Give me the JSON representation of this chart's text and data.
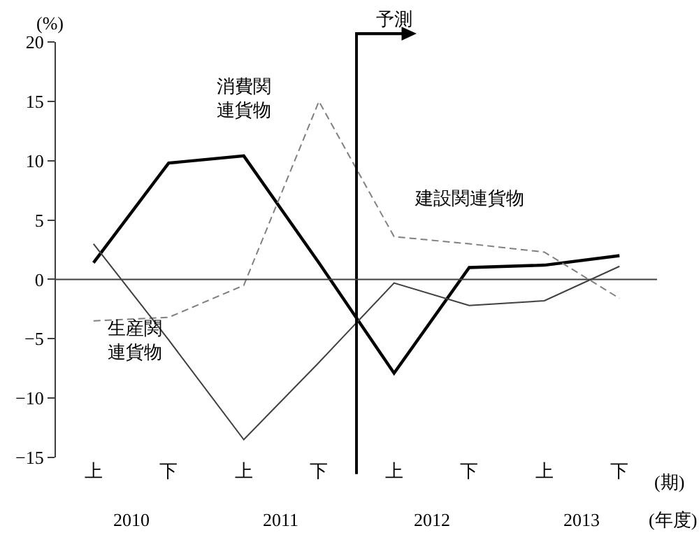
{
  "chart_data": {
    "type": "line",
    "categories": [
      "上",
      "下",
      "上",
      "下",
      "上",
      "下",
      "上",
      "下"
    ],
    "series": [
      {
        "name": "消費関連貨物",
        "color": "#000000",
        "line_style": "solid",
        "values": [
          1.4,
          9.8,
          10.4,
          1.4,
          -7.9,
          1.0,
          1.2,
          2.0
        ]
      },
      {
        "name": "建設関連貨物",
        "color": "#808080",
        "line_style": "dashed",
        "values": [
          -3.5,
          -3.2,
          -0.5,
          15.0,
          3.6,
          3.0,
          2.3,
          -1.6
        ]
      },
      {
        "name": "生産関連貨物",
        "color": "#404040",
        "line_style": "solid",
        "values": [
          3.0,
          -5.1,
          -13.5,
          -7.0,
          -0.3,
          -2.2,
          -1.8,
          1.1
        ]
      }
    ],
    "ylabel": "(%)",
    "xlabel": "(期)",
    "ylim": [
      -15,
      20
    ],
    "yticks": [
      {
        "value": -15,
        "label": "−15"
      },
      {
        "value": -10,
        "label": "−10"
      },
      {
        "value": -5,
        "label": "−5"
      },
      0,
      5,
      10,
      15,
      20
    ],
    "ref_lines": [
      {
        "axis": "y",
        "value": 0,
        "color": "#404040"
      }
    ],
    "annotations": [
      "予測",
      "2010",
      "2011",
      "2012",
      "2013",
      "(年度)"
    ],
    "legend": false,
    "marker": "none"
  }
}
